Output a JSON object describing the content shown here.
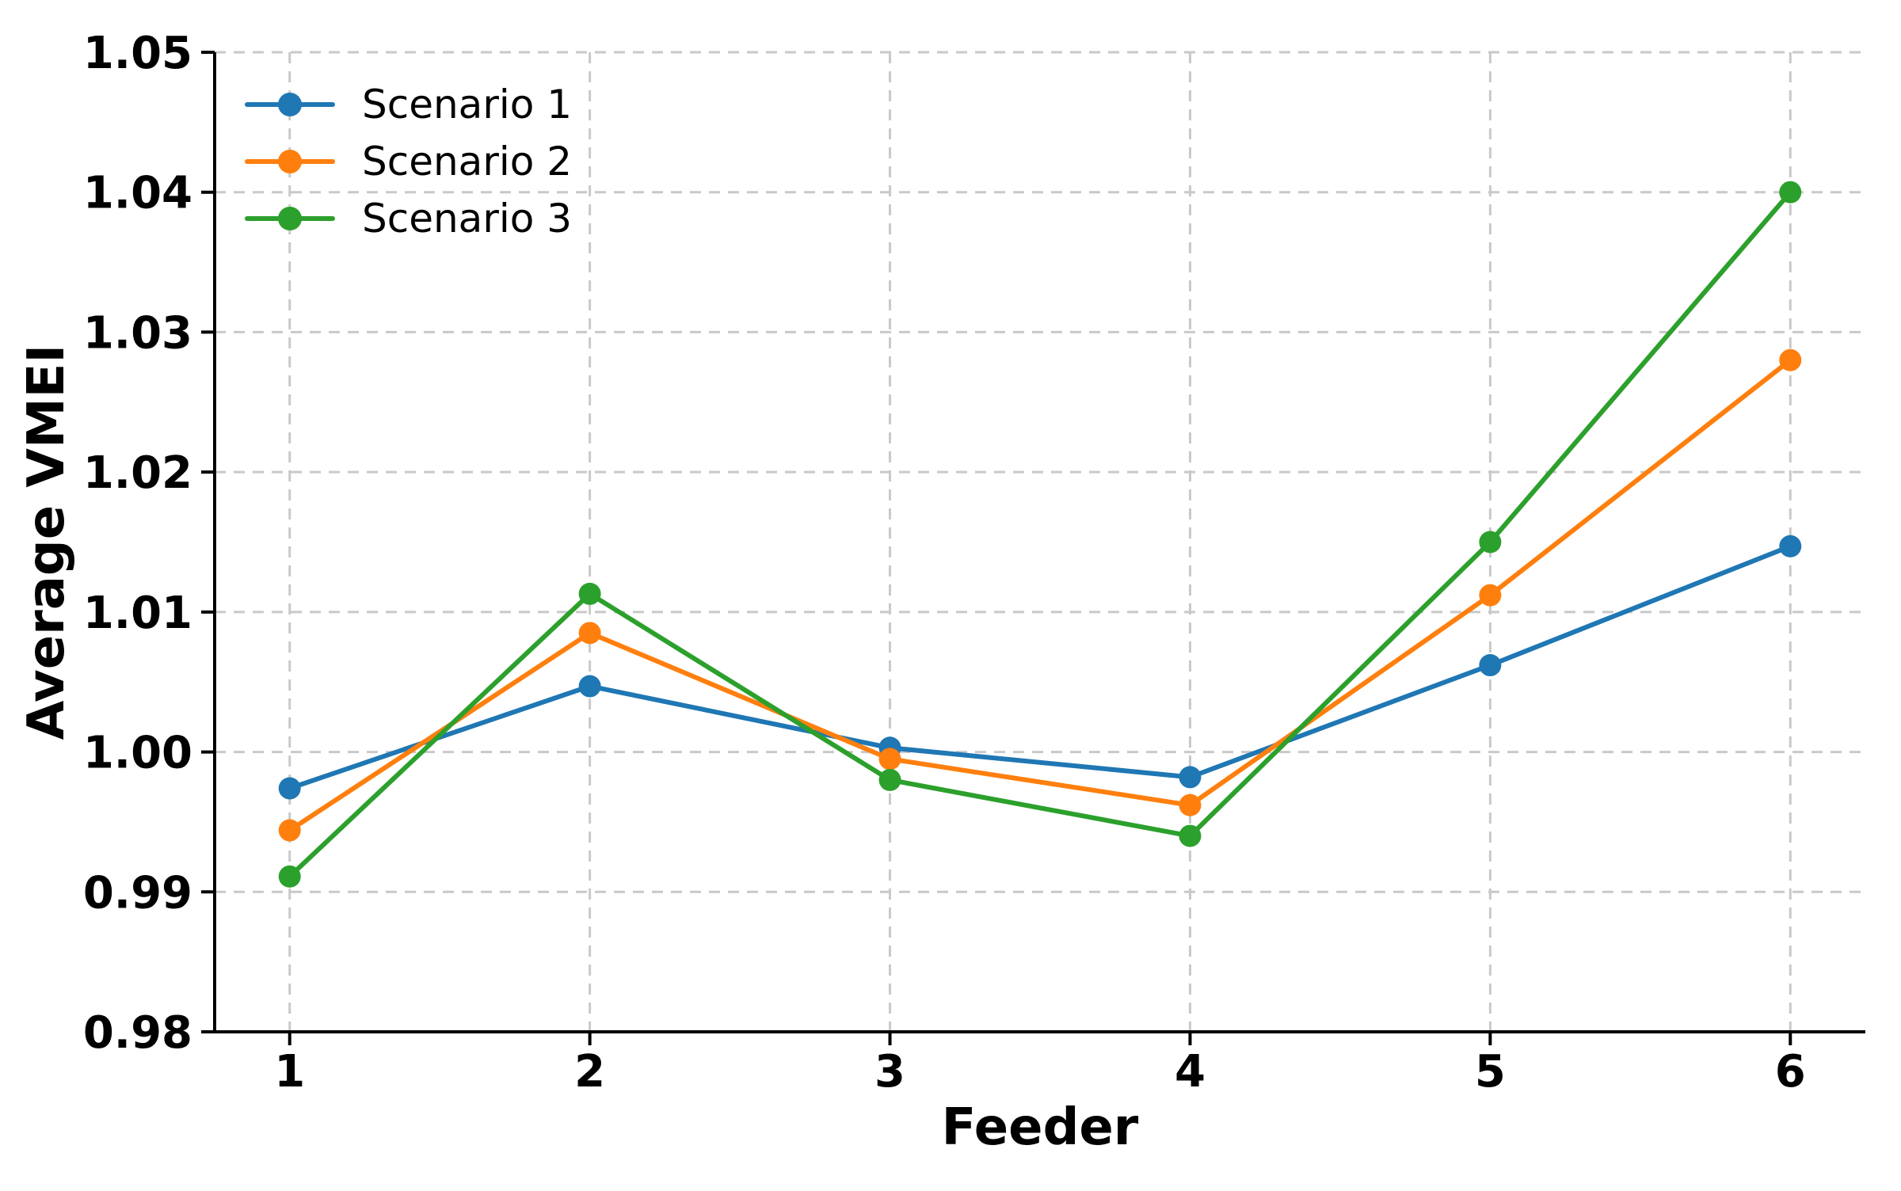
{
  "chart_data": {
    "type": "line",
    "title": "",
    "xlabel": "Feeder",
    "ylabel": "Average VMEI",
    "categories": [
      1,
      2,
      3,
      4,
      5,
      6
    ],
    "xlim": [
      0.75,
      6.25
    ],
    "ylim": [
      0.98,
      1.05
    ],
    "yticks": [
      0.98,
      0.99,
      1.0,
      1.01,
      1.02,
      1.03,
      1.04,
      1.05
    ],
    "ytick_labels": [
      "0.98",
      "0.99",
      "1.00",
      "1.01",
      "1.02",
      "1.03",
      "1.04",
      "1.05"
    ],
    "xtick_labels": [
      "1",
      "2",
      "3",
      "4",
      "5",
      "6"
    ],
    "grid": "dashed-both-axes",
    "legend_position": "upper-left-inside",
    "legend_frame": false,
    "series": [
      {
        "name": "Scenario 1",
        "color": "#1f77b4",
        "values": [
          0.9974,
          1.0047,
          1.0003,
          0.9982,
          1.0062,
          1.0147
        ]
      },
      {
        "name": "Scenario 2",
        "color": "#ff7f0e",
        "values": [
          0.9944,
          1.0085,
          0.9995,
          0.9962,
          1.0112,
          1.028
        ]
      },
      {
        "name": "Scenario 3",
        "color": "#2ca02c",
        "values": [
          0.9911,
          1.0113,
          0.998,
          0.994,
          1.015,
          1.04
        ]
      }
    ],
    "colors": {
      "grid": "#c9c9c9",
      "axis": "#000000",
      "background": "#ffffff"
    }
  }
}
